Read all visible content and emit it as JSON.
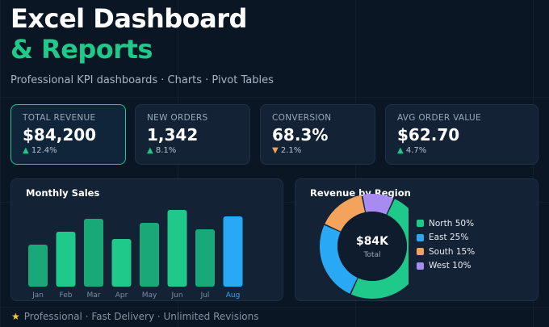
{
  "header": {
    "title_line1": "Excel Dashboard",
    "title_line2": "& Reports",
    "subtitle": "Professional KPI dashboards · Charts · Pivot Tables"
  },
  "kpis": [
    {
      "label": "TOTAL REVENUE",
      "value": "$84,200",
      "arrow": "▲",
      "delta": "12.4%",
      "trend": "up"
    },
    {
      "label": "NEW ORDERS",
      "value": "1,342",
      "arrow": "▲",
      "delta": "8.1%",
      "trend": "up"
    },
    {
      "label": "CONVERSION",
      "value": "68.3%",
      "arrow": "▼",
      "delta": "2.1%",
      "trend": "down"
    },
    {
      "label": "AVG ORDER VALUE",
      "value": "$62.70",
      "arrow": "▲",
      "delta": "4.7%",
      "trend": "up"
    }
  ],
  "monthly_sales": {
    "title": "Monthly Sales"
  },
  "revenue_by_region": {
    "title": "Revenue by Region",
    "center_value": "$84K",
    "center_label": "Total",
    "legend": [
      {
        "label": "North 50%",
        "color": "#1ec98a"
      },
      {
        "label": "East 25%",
        "color": "#29a9f5"
      },
      {
        "label": "South 15%",
        "color": "#f4a35c"
      },
      {
        "label": "West 10%",
        "color": "#a88bf0"
      }
    ]
  },
  "footer": {
    "icon": "star-icon",
    "text": "Professional · Fast Delivery · Unlimited Revisions"
  },
  "chart_data": [
    {
      "type": "bar",
      "title": "Monthly Sales",
      "categories": [
        "Jan",
        "Feb",
        "Mar",
        "Apr",
        "May",
        "Jun",
        "Jul",
        "Aug"
      ],
      "values": [
        52,
        68,
        84,
        59,
        79,
        95,
        71,
        87
      ],
      "highlight_index": 7,
      "colors": {
        "bar": "#1ec98a",
        "bar_dark": "#19a877",
        "highlight": "#29a9f5"
      },
      "ylim": [
        0,
        100
      ],
      "grid": false
    },
    {
      "type": "pie",
      "title": "Revenue by Region",
      "labels": [
        "North",
        "East",
        "South",
        "West"
      ],
      "values": [
        50,
        25,
        15,
        10
      ],
      "colors": [
        "#1ec98a",
        "#29a9f5",
        "#f4a35c",
        "#a88bf0"
      ],
      "donut": true
    }
  ]
}
